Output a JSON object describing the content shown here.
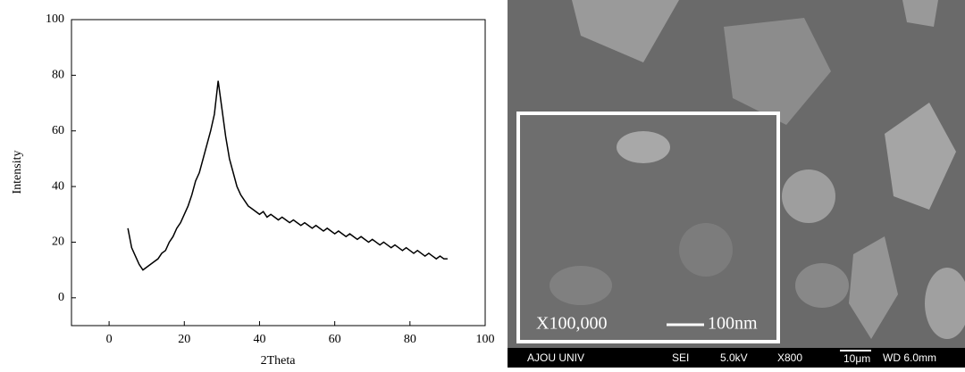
{
  "chart_data": {
    "type": "line",
    "x_label": "2Theta",
    "y_label": "Intensity",
    "x": [
      5,
      6,
      7,
      8,
      9,
      10,
      11,
      12,
      13,
      14,
      15,
      16,
      17,
      18,
      19,
      20,
      21,
      22,
      23,
      24,
      25,
      26,
      27,
      28,
      29,
      30,
      31,
      32,
      33,
      34,
      35,
      36,
      37,
      38,
      39,
      40,
      41,
      42,
      43,
      44,
      45,
      46,
      47,
      48,
      49,
      50,
      51,
      52,
      53,
      54,
      55,
      56,
      57,
      58,
      59,
      60,
      61,
      62,
      63,
      64,
      65,
      66,
      67,
      68,
      69,
      70,
      71,
      72,
      73,
      74,
      75,
      76,
      77,
      78,
      79,
      80,
      81,
      82,
      83,
      84,
      85,
      86,
      87,
      88,
      89,
      90
    ],
    "series": [
      {
        "color": "#000000",
        "values": [
          25,
          18,
          15,
          12,
          10,
          11,
          12,
          13,
          14,
          16,
          17,
          20,
          22,
          25,
          27,
          30,
          33,
          37,
          42,
          45,
          50,
          55,
          60,
          66,
          78,
          68,
          58,
          50,
          45,
          40,
          37,
          35,
          33,
          32,
          31,
          30,
          31,
          29,
          30,
          29,
          28,
          29,
          28,
          27,
          28,
          27,
          26,
          27,
          26,
          25,
          26,
          25,
          24,
          25,
          24,
          23,
          24,
          23,
          22,
          23,
          22,
          21,
          22,
          21,
          20,
          21,
          20,
          19,
          20,
          19,
          18,
          19,
          18,
          17,
          18,
          17,
          16,
          17,
          16,
          15,
          16,
          15,
          14,
          15,
          14,
          14
        ]
      }
    ],
    "xlim": [
      -10,
      100
    ],
    "xticks": [
      0,
      20,
      40,
      60,
      80,
      100
    ],
    "ylim": [
      -10,
      100
    ],
    "yticks": [
      0,
      20,
      40,
      60,
      80,
      100
    ]
  },
  "image": {
    "inset_magnification": "X100,000",
    "inset_scale": "100nm",
    "footer": [
      "AJOU UNIV",
      "SEI",
      "5.0kV",
      "X800",
      "10μm",
      "WD 6.0mm"
    ]
  }
}
